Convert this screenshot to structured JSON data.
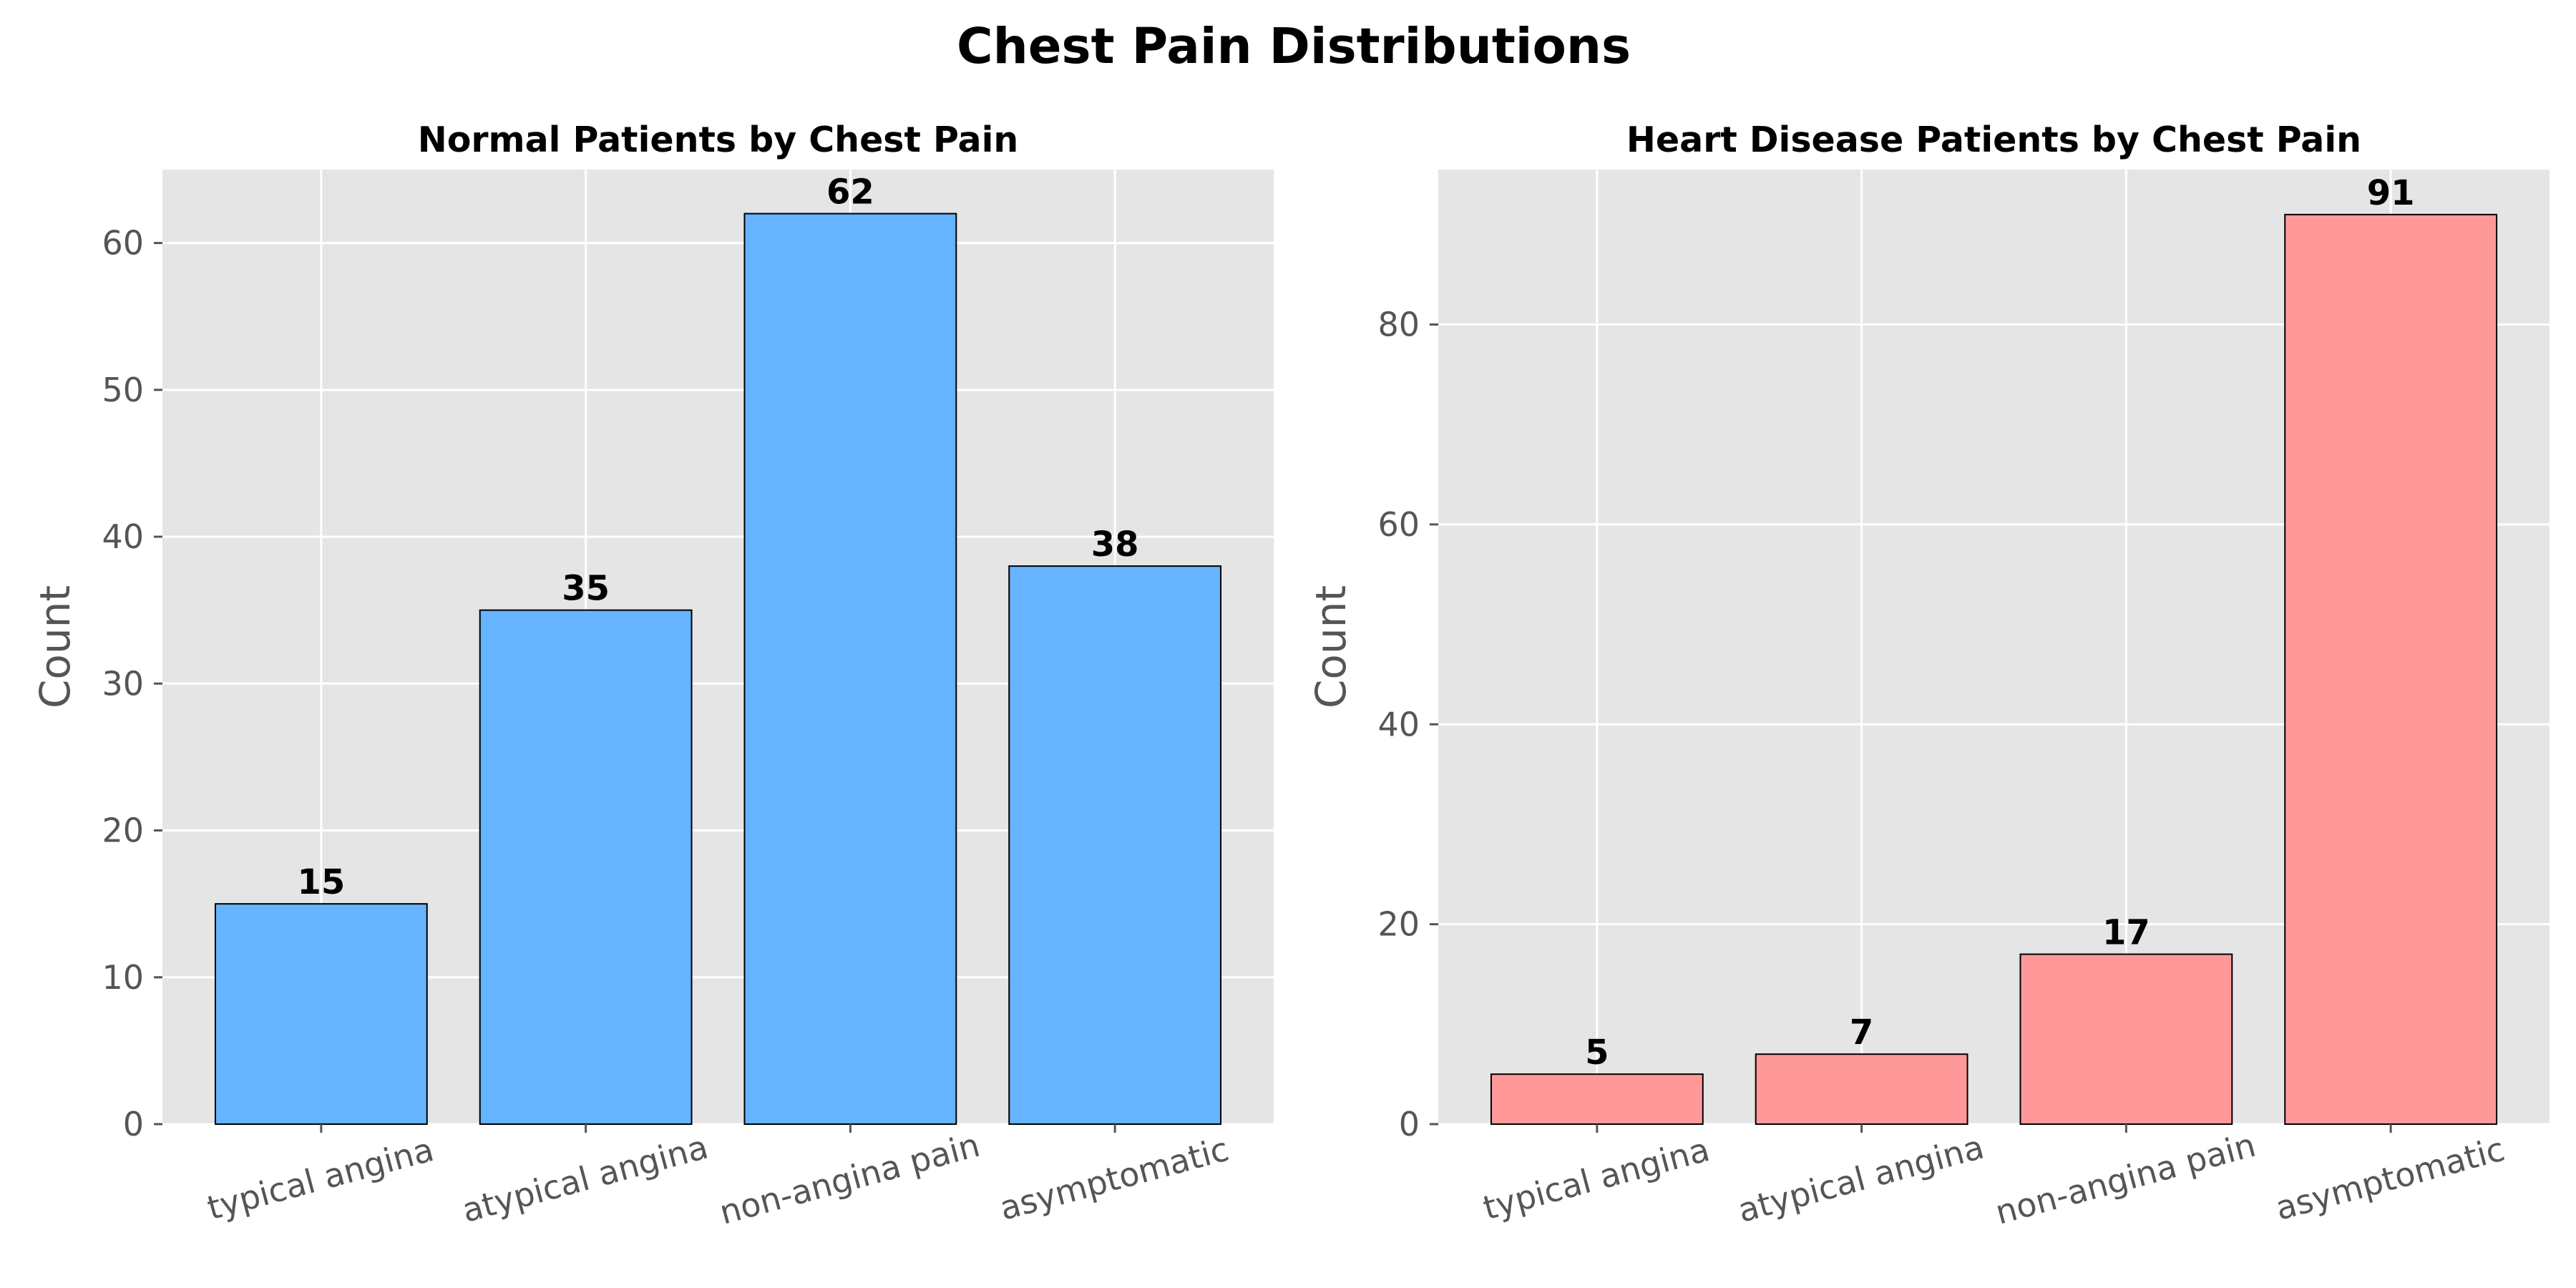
{
  "title": "Chest Pain Distributions",
  "colors": {
    "normal": "#66b3ff",
    "disease": "#ff9999",
    "panel_bg": "#e5e5e5",
    "grid": "#ffffff",
    "edge": "#000000",
    "tick_text": "#555555"
  },
  "chart_data": [
    {
      "type": "bar",
      "title": "Normal Patients by Chest Pain",
      "xlabel": "",
      "ylabel": "Count",
      "categories": [
        "typical angina",
        "atypical angina",
        "non-angina pain",
        "asymptomatic"
      ],
      "values": [
        15,
        35,
        62,
        38
      ],
      "ylim": [
        0,
        65
      ],
      "yticks": [
        0,
        10,
        20,
        30,
        40,
        50,
        60
      ],
      "grid": true,
      "color": "#66b3ff"
    },
    {
      "type": "bar",
      "title": "Heart Disease Patients by Chest Pain",
      "xlabel": "",
      "ylabel": "Count",
      "categories": [
        "typical angina",
        "atypical angina",
        "non-angina pain",
        "asymptomatic"
      ],
      "values": [
        5,
        7,
        17,
        91
      ],
      "ylim": [
        0,
        95.5
      ],
      "yticks": [
        0,
        20,
        40,
        60,
        80
      ],
      "grid": true,
      "color": "#ff9999"
    }
  ]
}
